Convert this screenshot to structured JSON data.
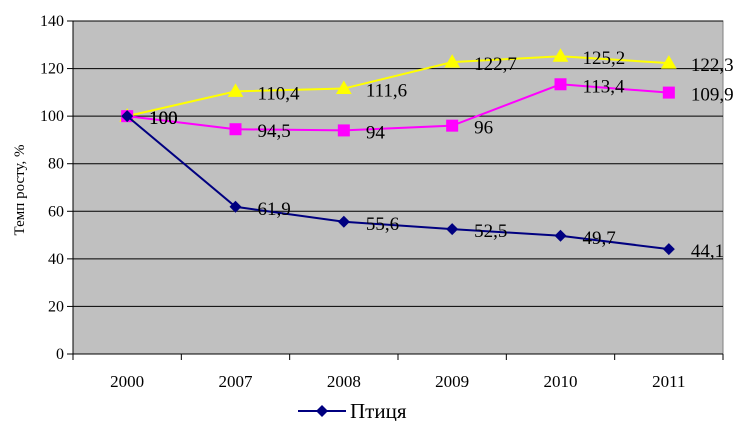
{
  "chart_data": {
    "type": "line",
    "title": "",
    "xlabel": "",
    "ylabel": "Темп росту, %",
    "categories": [
      "2000",
      "2007",
      "2008",
      "2009",
      "2010",
      "2011"
    ],
    "ylim": [
      0,
      140
    ],
    "yticks": [
      0,
      20,
      40,
      60,
      80,
      100,
      120,
      140
    ],
    "grid": true,
    "legend_position": "bottom",
    "background": "#c0c0c0",
    "series": [
      {
        "values": [
          100,
          110.4,
          111.6,
          122.7,
          125.2,
          122.3
        ],
        "labels": [
          "100",
          "110,4",
          "111,6",
          "122,7",
          "125,2",
          "122,3"
        ],
        "color": "#ffff00",
        "marker": "triangle"
      },
      {
        "values": [
          100,
          94.5,
          94,
          96,
          113.4,
          109.9
        ],
        "labels": [
          "100",
          "94,5",
          "94",
          "96",
          "113,4",
          "109,9"
        ],
        "color": "#ff00ff",
        "marker": "square"
      },
      {
        "name": "Птиця",
        "values": [
          100,
          61.9,
          55.6,
          52.5,
          49.7,
          44.1
        ],
        "labels": [
          "100",
          "61,9",
          "55,6",
          "52,5",
          "49,7",
          "44,1"
        ],
        "color": "#000080",
        "marker": "diamond"
      }
    ]
  }
}
